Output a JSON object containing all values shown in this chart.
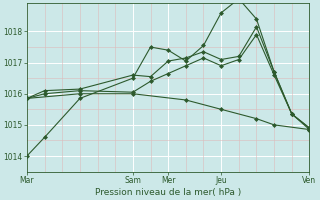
{
  "background_color": "#cce8e8",
  "grid_color": "#ffffff",
  "line_color": "#2d5a2d",
  "xlabel": "Pression niveau de la mer( hPa )",
  "xlabel_color": "#2d5a2d",
  "xlim": [
    0,
    96
  ],
  "ylim": [
    1013.5,
    1018.9
  ],
  "yticks": [
    1014,
    1015,
    1016,
    1017,
    1018
  ],
  "xtick_positions": [
    0,
    36,
    48,
    66,
    96
  ],
  "xtick_labels": [
    "Mar",
    "Sam",
    "Mer",
    "Jeu",
    "Ven"
  ],
  "series": [
    {
      "x": [
        0,
        6,
        18,
        36,
        42,
        48,
        54,
        60,
        66,
        72,
        78,
        84,
        90,
        96
      ],
      "y": [
        1014.0,
        1014.6,
        1015.85,
        1016.5,
        1017.5,
        1017.4,
        1017.05,
        1017.55,
        1018.6,
        1019.05,
        1018.4,
        1016.7,
        1015.35,
        1014.9
      ]
    },
    {
      "x": [
        0,
        6,
        18,
        36,
        42,
        48,
        54,
        60,
        66,
        72,
        78,
        84,
        90,
        96
      ],
      "y": [
        1015.85,
        1016.1,
        1016.15,
        1016.6,
        1016.55,
        1017.05,
        1017.15,
        1017.35,
        1017.1,
        1017.2,
        1018.15,
        1016.7,
        1015.35,
        1014.9
      ]
    },
    {
      "x": [
        0,
        6,
        18,
        36,
        42,
        48,
        54,
        60,
        66,
        72,
        78,
        84,
        90,
        96
      ],
      "y": [
        1015.85,
        1016.0,
        1016.1,
        1016.05,
        1016.4,
        1016.65,
        1016.9,
        1017.15,
        1016.9,
        1017.1,
        1017.9,
        1016.6,
        1015.35,
        1014.85
      ]
    },
    {
      "x": [
        0,
        18,
        36,
        54,
        66,
        78,
        84,
        96
      ],
      "y": [
        1015.85,
        1016.0,
        1016.0,
        1015.8,
        1015.5,
        1015.2,
        1015.0,
        1014.85
      ]
    }
  ],
  "vline_positions": [
    0,
    36,
    48,
    66,
    96
  ],
  "vline_color": "#aaaaaa",
  "minor_vline_positions": [
    6,
    12,
    18,
    24,
    30,
    42,
    54,
    60,
    72,
    78,
    84,
    90
  ],
  "minor_vline_color": "#ddbbbb"
}
